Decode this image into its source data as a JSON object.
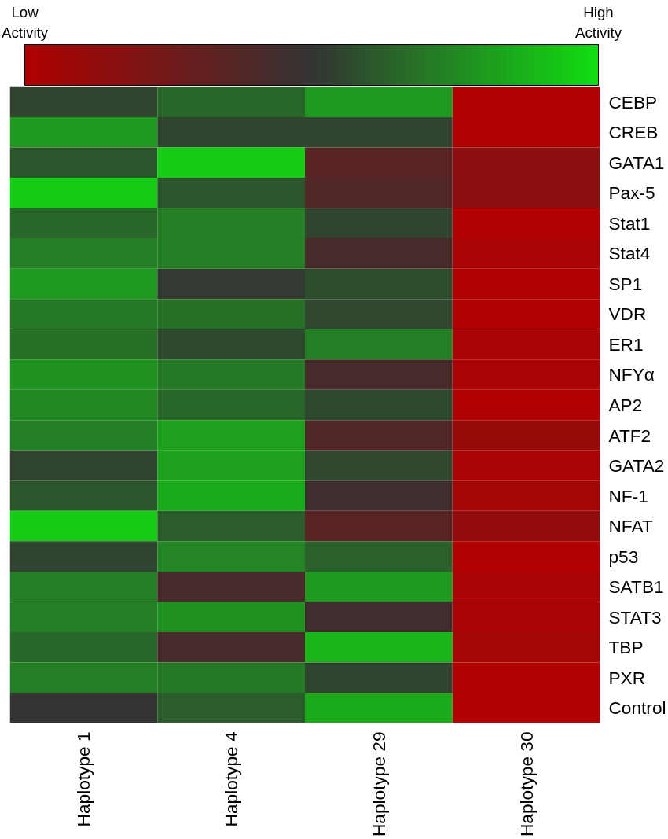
{
  "chart_data": {
    "type": "heatmap",
    "categories": [
      "Haplotype 1",
      "Haplotype 4",
      "Haplotype 29",
      "Haplotype 30"
    ],
    "y_categories": [
      "CEBP",
      "CREB",
      "GATA1",
      "Pax-5",
      "Stat1",
      "Stat4",
      "SP1",
      "VDR",
      "ER1",
      "NFYα",
      "AP2",
      "ATF2",
      "GATA2",
      "NF-1",
      "NFAT",
      "p53",
      "SATB1",
      "STAT3",
      "TBP",
      "PXR",
      "Control"
    ],
    "cells": [
      [
        0.55,
        0.65,
        0.8,
        0.0
      ],
      [
        0.8,
        0.55,
        0.55,
        0.0
      ],
      [
        0.6,
        0.95,
        0.35,
        0.15
      ],
      [
        0.95,
        0.6,
        0.38,
        0.15
      ],
      [
        0.65,
        0.72,
        0.55,
        0.0
      ],
      [
        0.72,
        0.72,
        0.42,
        0.03
      ],
      [
        0.8,
        0.52,
        0.58,
        0.0
      ],
      [
        0.7,
        0.68,
        0.56,
        0.0
      ],
      [
        0.68,
        0.57,
        0.72,
        0.03
      ],
      [
        0.78,
        0.7,
        0.42,
        0.03
      ],
      [
        0.75,
        0.65,
        0.57,
        0.0
      ],
      [
        0.72,
        0.82,
        0.38,
        0.1
      ],
      [
        0.55,
        0.82,
        0.56,
        0.03
      ],
      [
        0.6,
        0.85,
        0.45,
        0.05
      ],
      [
        0.95,
        0.62,
        0.35,
        0.12
      ],
      [
        0.55,
        0.74,
        0.63,
        0.0
      ],
      [
        0.72,
        0.42,
        0.8,
        0.03
      ],
      [
        0.72,
        0.78,
        0.45,
        0.03
      ],
      [
        0.65,
        0.42,
        0.88,
        0.05
      ],
      [
        0.72,
        0.7,
        0.55,
        0.0
      ],
      [
        0.5,
        0.62,
        0.85,
        0.0
      ]
    ],
    "clim": [
      0,
      1
    ],
    "cticks": [
      {
        "value": 0,
        "label": "Low\nActivity"
      },
      {
        "value": 1,
        "label": "High\nActivity"
      }
    ]
  }
}
